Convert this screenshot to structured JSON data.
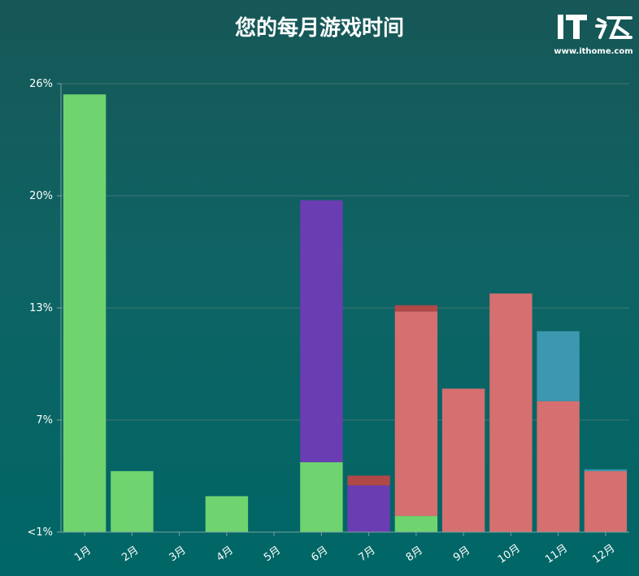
{
  "title": "您的每月游戏时间",
  "logo": {
    "mark": "IT之家",
    "url_text": "www.ithome.com"
  },
  "colors": {
    "green": "#6fd46f",
    "purple": "#6a3db3",
    "salmon": "#d66f6f",
    "darkred": "#b04848",
    "teal": "#3c98b0",
    "grid": "#3f7474",
    "axis": "#7aa0a0"
  },
  "chart_data": {
    "type": "bar",
    "stacked": true,
    "title": "您的每月游戏时间",
    "categories": [
      "1月",
      "2月",
      "3月",
      "4月",
      "5月",
      "6月",
      "7月",
      "8月",
      "9月",
      "10月",
      "11月",
      "12月"
    ],
    "y_ticks": [
      "<1%",
      "7%",
      "13%",
      "20%",
      "26%"
    ],
    "ylim": [
      1,
      26
    ],
    "grid": true,
    "series": [
      {
        "color": "green",
        "values": [
          24.4,
          3.4,
          0,
          2.0,
          0,
          3.9,
          0,
          0.9,
          0,
          0,
          0,
          0
        ]
      },
      {
        "color": "purple",
        "values": [
          0,
          0,
          0,
          0,
          0,
          14.6,
          2.6,
          0,
          0,
          0,
          0,
          0
        ]
      },
      {
        "color": "salmon",
        "values": [
          0,
          0,
          0,
          0,
          0,
          0,
          0,
          11.4,
          8.0,
          13.3,
          7.3,
          3.4
        ]
      },
      {
        "color": "darkred",
        "values": [
          0,
          0,
          0,
          0,
          0,
          0,
          0.55,
          0.35,
          0,
          0,
          0,
          0
        ]
      },
      {
        "color": "teal",
        "values": [
          0,
          0,
          0,
          0,
          0,
          0,
          0,
          0,
          0,
          0,
          3.9,
          0.1
        ]
      }
    ]
  }
}
